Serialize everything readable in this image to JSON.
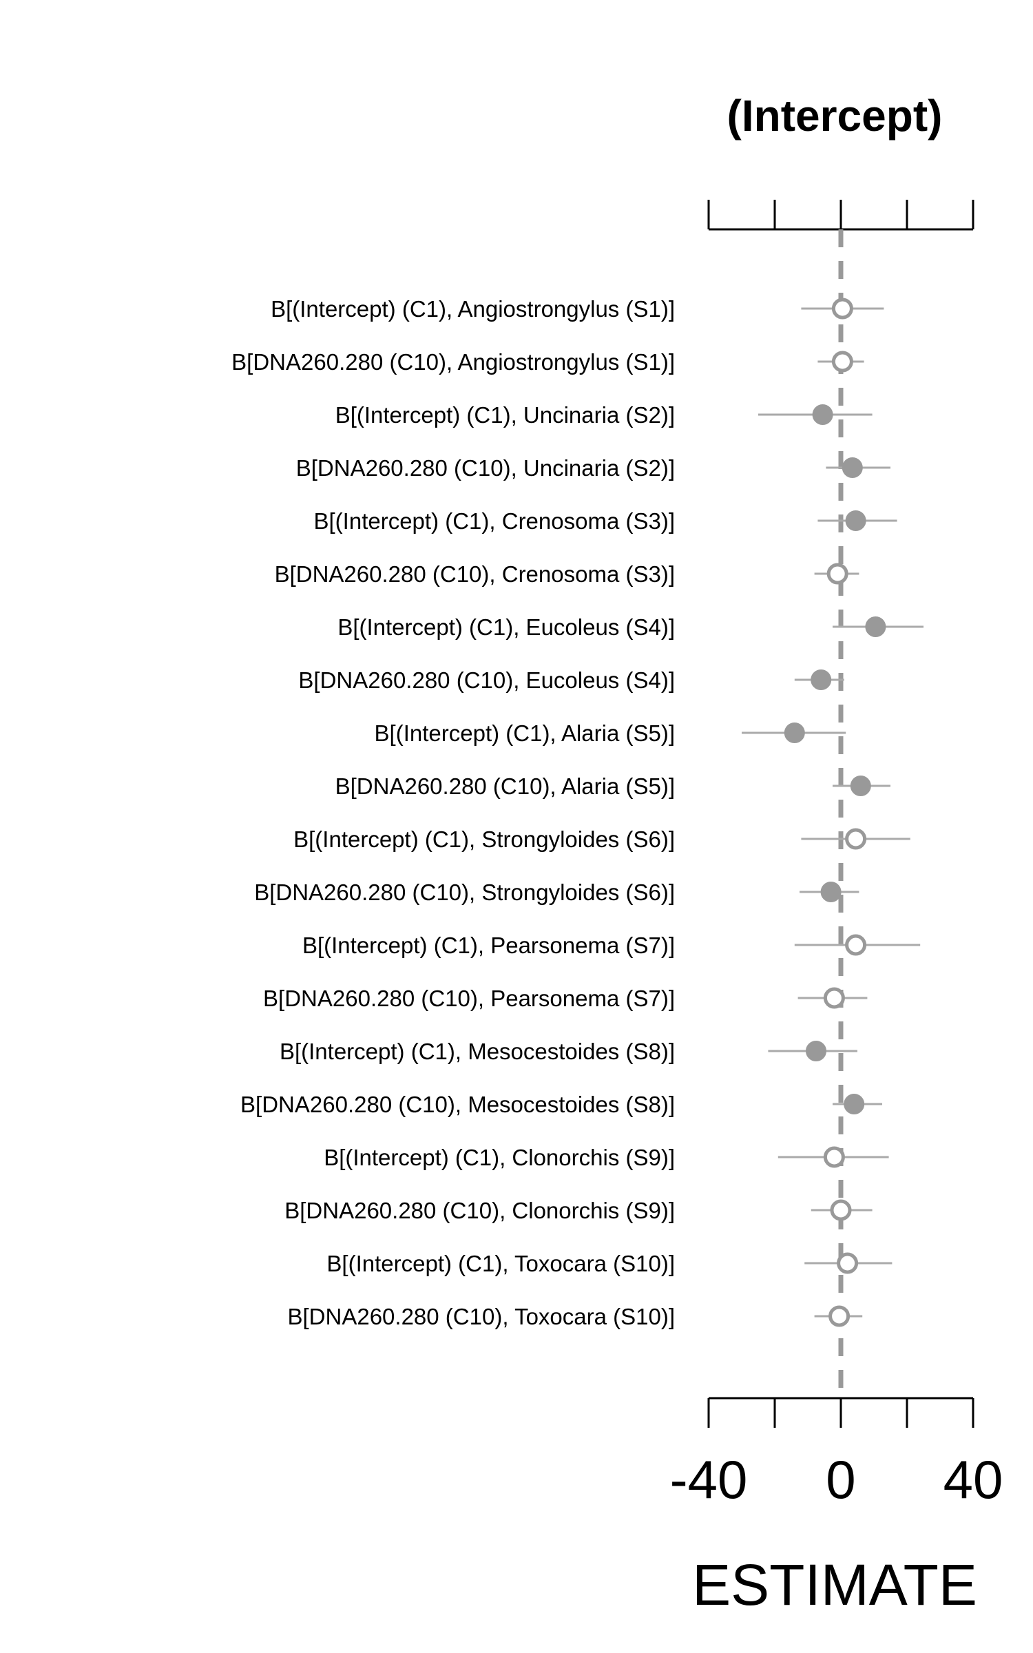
{
  "chart_data": {
    "type": "scatter",
    "subtype": "forest-plot",
    "title": "(Intercept)",
    "xlabel": "ESTIMATE",
    "ylabel": "",
    "xlim": [
      -40,
      40
    ],
    "x_ticks": [
      -40,
      -20,
      0,
      20,
      40
    ],
    "x_tick_labels": [
      "-40",
      "0",
      "40"
    ],
    "labeled_ticks": [
      -40,
      0,
      40
    ],
    "reference_line": 0,
    "grid": false,
    "colors": {
      "point": "#999999",
      "interval": "#aaaaaa",
      "reference": "#999999",
      "axis": "#000000"
    },
    "rows": [
      {
        "label": "B[(Intercept) (C1), Angiostrongylus (S1)]",
        "estimate": 0.5,
        "lower": -12,
        "upper": 13,
        "filled": false
      },
      {
        "label": "B[DNA260.280 (C10), Angiostrongylus (S1)]",
        "estimate": 0.5,
        "lower": -7,
        "upper": 7,
        "filled": false
      },
      {
        "label": "B[(Intercept) (C1), Uncinaria (S2)]",
        "estimate": -5.5,
        "lower": -25,
        "upper": 9.5,
        "filled": true
      },
      {
        "label": "B[DNA260.280 (C10), Uncinaria (S2)]",
        "estimate": 3.5,
        "lower": -4.5,
        "upper": 15,
        "filled": true
      },
      {
        "label": "B[(Intercept) (C1), Crenosoma (S3)]",
        "estimate": 4.5,
        "lower": -7,
        "upper": 17,
        "filled": true
      },
      {
        "label": "B[DNA260.280 (C10), Crenosoma (S3)]",
        "estimate": -1,
        "lower": -8,
        "upper": 5.5,
        "filled": false
      },
      {
        "label": "B[(Intercept) (C1), Eucoleus (S4)]",
        "estimate": 10.5,
        "lower": -2.5,
        "upper": 25,
        "filled": true
      },
      {
        "label": "B[DNA260.280 (C10), Eucoleus (S4)]",
        "estimate": -6,
        "lower": -14,
        "upper": 1,
        "filled": true
      },
      {
        "label": "B[(Intercept) (C1), Alaria (S5)]",
        "estimate": -14,
        "lower": -30,
        "upper": 1.5,
        "filled": true
      },
      {
        "label": "B[DNA260.280 (C10), Alaria (S5)]",
        "estimate": 6,
        "lower": -2.5,
        "upper": 15,
        "filled": true
      },
      {
        "label": "B[(Intercept) (C1), Strongyloides (S6)]",
        "estimate": 4.5,
        "lower": -12,
        "upper": 21,
        "filled": false
      },
      {
        "label": "B[DNA260.280 (C10), Strongyloides (S6)]",
        "estimate": -3,
        "lower": -12.5,
        "upper": 5.5,
        "filled": true
      },
      {
        "label": "B[(Intercept) (C1), Pearsonema (S7)]",
        "estimate": 4.5,
        "lower": -14,
        "upper": 24,
        "filled": false
      },
      {
        "label": "B[DNA260.280 (C10), Pearsonema (S7)]",
        "estimate": -2,
        "lower": -13,
        "upper": 8,
        "filled": false
      },
      {
        "label": "B[(Intercept) (C1), Mesocestoides (S8)]",
        "estimate": -7.5,
        "lower": -22,
        "upper": 5,
        "filled": true
      },
      {
        "label": "B[DNA260.280 (C10), Mesocestoides (S8)]",
        "estimate": 4,
        "lower": -2.5,
        "upper": 12.5,
        "filled": true
      },
      {
        "label": "B[(Intercept) (C1), Clonorchis (S9)]",
        "estimate": -2,
        "lower": -19,
        "upper": 14.5,
        "filled": false
      },
      {
        "label": "B[DNA260.280 (C10), Clonorchis (S9)]",
        "estimate": 0,
        "lower": -9,
        "upper": 9.5,
        "filled": false
      },
      {
        "label": "B[(Intercept) (C1), Toxocara (S10)]",
        "estimate": 2,
        "lower": -11,
        "upper": 15.5,
        "filled": false
      },
      {
        "label": "B[DNA260.280 (C10), Toxocara (S10)]",
        "estimate": -0.5,
        "lower": -8,
        "upper": 6.5,
        "filled": false
      }
    ]
  }
}
